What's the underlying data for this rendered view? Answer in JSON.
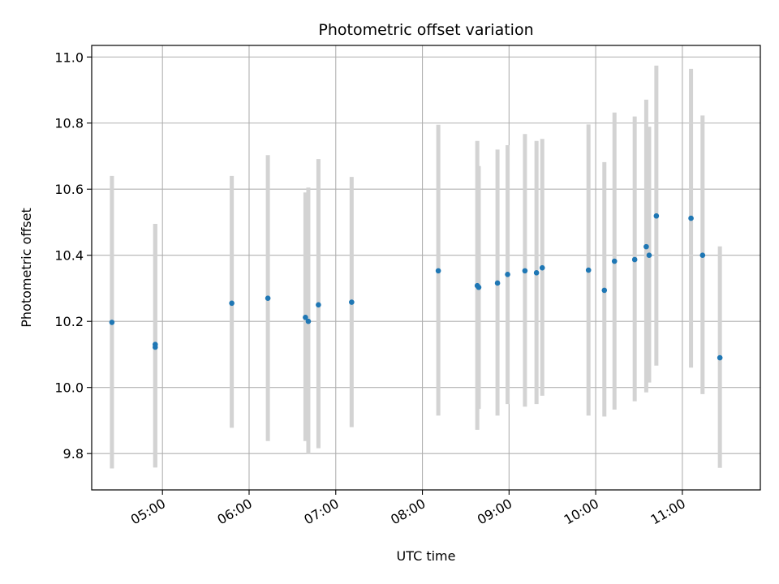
{
  "chart_data": {
    "type": "scatter",
    "title": "Photometric offset variation",
    "xlabel": "UTC time",
    "ylabel": "Photometric offset",
    "x_ticks": [
      "05:00",
      "06:00",
      "07:00",
      "08:00",
      "09:00",
      "10:00",
      "11:00"
    ],
    "y_ticks": [
      "9.8",
      "10.0",
      "10.2",
      "10.4",
      "10.6",
      "10.8",
      "11.0"
    ],
    "xlim": [
      "04:11",
      "11:54"
    ],
    "ylim": [
      9.69,
      11.035
    ],
    "grid": true,
    "colors": {
      "point": "#1f77b4",
      "errorbar": "#d3d3d3",
      "grid": "#b0b0b0"
    },
    "points": [
      {
        "x": "04:25",
        "y": 10.197,
        "y_low": 9.755,
        "y_high": 10.64
      },
      {
        "x": "04:55",
        "y": 10.13,
        "y_low": 9.758,
        "y_high": 10.495
      },
      {
        "x": "04:55",
        "y": 10.122,
        "y_low": 9.758,
        "y_high": 10.495
      },
      {
        "x": "05:48",
        "y": 10.255,
        "y_low": 9.878,
        "y_high": 10.64
      },
      {
        "x": "06:13",
        "y": 10.27,
        "y_low": 9.838,
        "y_high": 10.703
      },
      {
        "x": "06:39",
        "y": 10.212,
        "y_low": 9.838,
        "y_high": 10.59
      },
      {
        "x": "06:41",
        "y": 10.2,
        "y_low": 9.798,
        "y_high": 10.605
      },
      {
        "x": "06:48",
        "y": 10.25,
        "y_low": 9.816,
        "y_high": 10.691
      },
      {
        "x": "07:11",
        "y": 10.258,
        "y_low": 9.88,
        "y_high": 10.637
      },
      {
        "x": "08:11",
        "y": 10.353,
        "y_low": 9.915,
        "y_high": 10.795
      },
      {
        "x": "08:38",
        "y": 10.308,
        "y_low": 9.872,
        "y_high": 10.746
      },
      {
        "x": "08:39",
        "y": 10.303,
        "y_low": 9.935,
        "y_high": 10.67
      },
      {
        "x": "08:52",
        "y": 10.316,
        "y_low": 9.915,
        "y_high": 10.72
      },
      {
        "x": "08:59",
        "y": 10.342,
        "y_low": 9.95,
        "y_high": 10.733
      },
      {
        "x": "09:11",
        "y": 10.353,
        "y_low": 9.942,
        "y_high": 10.767
      },
      {
        "x": "09:19",
        "y": 10.347,
        "y_low": 9.95,
        "y_high": 10.746
      },
      {
        "x": "09:23",
        "y": 10.362,
        "y_low": 9.975,
        "y_high": 10.752
      },
      {
        "x": "09:55",
        "y": 10.355,
        "y_low": 9.915,
        "y_high": 10.796
      },
      {
        "x": "10:06",
        "y": 10.294,
        "y_low": 9.912,
        "y_high": 10.682
      },
      {
        "x": "10:13",
        "y": 10.382,
        "y_low": 9.933,
        "y_high": 10.832
      },
      {
        "x": "10:27",
        "y": 10.387,
        "y_low": 9.958,
        "y_high": 10.82
      },
      {
        "x": "10:35",
        "y": 10.426,
        "y_low": 9.985,
        "y_high": 10.871
      },
      {
        "x": "10:37",
        "y": 10.4,
        "y_low": 10.015,
        "y_high": 10.789
      },
      {
        "x": "10:42",
        "y": 10.519,
        "y_low": 10.066,
        "y_high": 10.974
      },
      {
        "x": "11:06",
        "y": 10.512,
        "y_low": 10.06,
        "y_high": 10.964
      },
      {
        "x": "11:14",
        "y": 10.4,
        "y_low": 9.98,
        "y_high": 10.823
      },
      {
        "x": "11:26",
        "y": 10.09,
        "y_low": 9.757,
        "y_high": 10.427
      }
    ]
  }
}
